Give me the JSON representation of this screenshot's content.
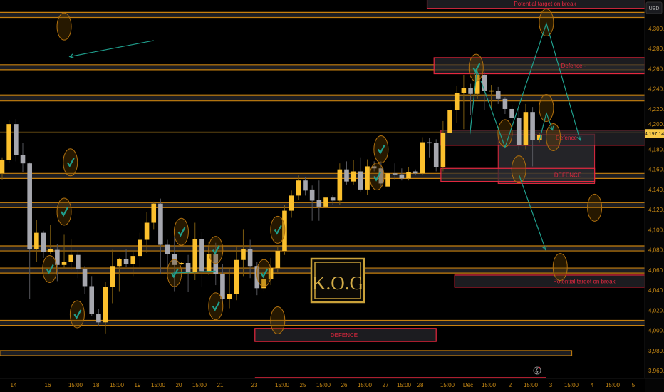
{
  "chart_data": {
    "type": "candlestick",
    "currency_label": "USD",
    "last_price": "4,197.14",
    "ylim": [
      3945,
      4335
    ],
    "yticks": [
      "4,300.00",
      "4,280.00",
      "4,260.00",
      "4,240.00",
      "4,220.00",
      "4,200.00",
      "4,180.00",
      "4,160.00",
      "4,140.00",
      "4,120.00",
      "4,100.00",
      "4,080.00",
      "4,060.00",
      "4,040.00",
      "4,020.00",
      "4,000.00",
      "3,980.00",
      "3,960.00"
    ],
    "xticks": [
      "14",
      "16",
      "15:00",
      "18",
      "15:00",
      "19",
      "15:00",
      "20",
      "15:00",
      "21",
      "23",
      "15:00",
      "25",
      "15:00",
      "26",
      "15:00",
      "27",
      "15:00",
      "28",
      "15:00",
      "Dec",
      "15:00",
      "2",
      "15:00",
      "3",
      "15:00",
      "4",
      "15:00",
      "5"
    ],
    "candles_ohlc": [
      [
        4156,
        4172,
        4150,
        4169
      ],
      [
        4169,
        4209,
        4167,
        4205
      ],
      [
        4205,
        4210,
        4168,
        4174
      ],
      [
        4174,
        4186,
        4157,
        4166
      ],
      [
        4166,
        4167,
        4031,
        4081
      ],
      [
        4081,
        4110,
        4068,
        4097
      ],
      [
        4097,
        4099,
        4072,
        4078
      ],
      [
        4078,
        4105,
        4076,
        4081
      ],
      [
        4080,
        4086,
        4049,
        4065
      ],
      [
        4065,
        4095,
        4062,
        4068
      ],
      [
        4068,
        4091,
        4060,
        4075
      ],
      [
        4075,
        4080,
        4052,
        4061
      ],
      [
        4061,
        4064,
        4036,
        4044
      ],
      [
        4044,
        4054,
        4014,
        4016
      ],
      [
        4016,
        4021,
        4004,
        4008
      ],
      [
        4008,
        4048,
        3997,
        4043
      ],
      [
        4043,
        4080,
        4027,
        4064
      ],
      [
        4064,
        4072,
        4039,
        4071
      ],
      [
        4071,
        4081,
        4063,
        4066
      ],
      [
        4066,
        4078,
        4054,
        4074
      ],
      [
        4074,
        4097,
        4063,
        4090
      ],
      [
        4090,
        4118,
        4077,
        4107
      ],
      [
        4107,
        4128,
        4100,
        4126
      ],
      [
        4126,
        4131,
        4056,
        4085
      ],
      [
        4085,
        4090,
        4055,
        4076
      ],
      [
        4076,
        4093,
        4039,
        4065
      ],
      [
        4066,
        4068,
        4065,
        4067
      ],
      [
        4067,
        4075,
        4038,
        4058
      ],
      [
        4058,
        4107,
        4050,
        4091
      ],
      [
        4091,
        4098,
        4043,
        4059
      ],
      [
        4059,
        4088,
        4055,
        4076
      ],
      [
        4076,
        4087,
        4045,
        4056
      ],
      [
        4056,
        4066,
        4027,
        4031
      ],
      [
        4031,
        4061,
        4022,
        4036
      ],
      [
        4036,
        4083,
        4030,
        4070
      ],
      [
        4070,
        4100,
        4054,
        4081
      ],
      [
        4081,
        4090,
        4052,
        4064
      ],
      [
        4064,
        4068,
        4035,
        4042
      ],
      [
        4042,
        4055,
        4039,
        4051
      ],
      [
        4051,
        4072,
        4045,
        4062
      ],
      [
        4062,
        4084,
        4058,
        4079
      ],
      [
        4079,
        4125,
        4075,
        4119
      ],
      [
        4119,
        4139,
        4112,
        4134
      ],
      [
        4134,
        4154,
        4130,
        4149
      ],
      [
        4149,
        4152,
        4134,
        4139
      ],
      [
        4140,
        4144,
        4109,
        4129
      ],
      [
        4130,
        4149,
        4109,
        4123
      ],
      [
        4123,
        4158,
        4117,
        4132
      ],
      [
        4132,
        4135,
        4125,
        4129
      ],
      [
        4129,
        4166,
        4125,
        4160
      ],
      [
        4160,
        4168,
        4145,
        4148
      ],
      [
        4148,
        4169,
        4145,
        4158
      ],
      [
        4158,
        4172,
        4138,
        4140
      ],
      [
        4140,
        4170,
        4135,
        4163
      ],
      [
        4163,
        4168,
        4158,
        4161
      ],
      [
        4161,
        4168,
        4143,
        4146
      ],
      [
        4143,
        4158,
        4142,
        4156
      ],
      [
        4156,
        4166,
        4150,
        4155
      ],
      [
        4155,
        4161,
        4149,
        4151
      ],
      [
        4151,
        4162,
        4149,
        4157
      ],
      [
        4158,
        4160,
        4154,
        4156
      ],
      [
        4156,
        4192,
        4154,
        4187
      ],
      [
        4187,
        4191,
        4172,
        4186
      ],
      [
        4186,
        4190,
        4158,
        4162
      ],
      [
        4162,
        4208,
        4158,
        4196
      ],
      [
        4196,
        4225,
        4195,
        4219
      ],
      [
        4219,
        4243,
        4206,
        4236
      ],
      [
        4236,
        4254,
        4200,
        4241
      ],
      [
        4241,
        4245,
        4214,
        4235
      ],
      [
        4235,
        4260,
        4230,
        4254
      ],
      [
        4254,
        4257,
        4219,
        4238
      ],
      [
        4238,
        4244,
        4220,
        4238.5
      ],
      [
        4238,
        4242,
        4225,
        4230
      ],
      [
        4230,
        4232,
        4215,
        4220
      ],
      [
        4220,
        4224,
        4205,
        4211
      ],
      [
        4211,
        4220,
        4180,
        4184
      ],
      [
        4184,
        4225,
        4180,
        4217
      ],
      [
        4217,
        4222,
        4163,
        4189
      ],
      [
        4189,
        4196,
        4187,
        4194
      ]
    ],
    "level_bands": [
      [
        4316,
        4311
      ],
      [
        4264,
        4259
      ],
      [
        4234,
        4228
      ],
      [
        4156,
        4151
      ],
      [
        4127,
        4122
      ],
      [
        4084,
        4079
      ],
      [
        4062,
        4057
      ],
      [
        4010,
        4005
      ]
    ],
    "short_band": {
      "price": [
        3980,
        3975
      ],
      "x_range": [
        0,
        83
      ]
    },
    "zones": [
      {
        "label": "Potential target on break",
        "price": [
          4335,
          4320
        ],
        "x_range": [
          62,
          94
        ]
      },
      {
        "label": "Defence -",
        "price": [
          4271,
          4255
        ],
        "x_range": [
          63,
          94
        ]
      },
      {
        "label": "Defence",
        "price": [
          4199,
          4184
        ],
        "x_range": [
          64,
          94
        ]
      },
      {
        "label": "DEFENCE",
        "price": [
          4161,
          4148
        ],
        "x_range": [
          64,
          86
        ]
      },
      {
        "label": "Potential target on break",
        "price": [
          4055,
          4043
        ],
        "x_range": [
          66,
          94
        ]
      },
      {
        "label": "DEFENCE",
        "price": [
          4002,
          3989
        ],
        "x_range": [
          37,
          63
        ]
      }
    ],
    "gray_box": {
      "price": [
        4195,
        4146
      ],
      "x_range": [
        72,
        86
      ]
    },
    "red_line": {
      "price": 3953,
      "x_range": [
        37,
        79
      ]
    },
    "markers": [
      {
        "x": 9,
        "price": 4302,
        "check": false
      },
      {
        "x": 9.9,
        "price": 4167,
        "check": true
      },
      {
        "x": 9,
        "price": 4118,
        "check": true
      },
      {
        "x": 6.9,
        "price": 4061,
        "check": true
      },
      {
        "x": 10.9,
        "price": 4016,
        "check": true
      },
      {
        "x": 26,
        "price": 4098,
        "check": true
      },
      {
        "x": 25,
        "price": 4057,
        "check": true
      },
      {
        "x": 31,
        "price": 4080,
        "check": true
      },
      {
        "x": 31,
        "price": 4024,
        "check": true
      },
      {
        "x": 40,
        "price": 4100,
        "check": true
      },
      {
        "x": 38,
        "price": 4057,
        "check": true
      },
      {
        "x": 40,
        "price": 4010,
        "check": false
      },
      {
        "x": 55,
        "price": 4180,
        "check": true
      },
      {
        "x": 54.4,
        "price": 4153,
        "check": true
      },
      {
        "x": 68.8,
        "price": 4261,
        "check": true
      },
      {
        "x": 73,
        "price": 4196,
        "check": false
      },
      {
        "x": 75,
        "price": 4160,
        "check": false
      },
      {
        "x": 79,
        "price": 4306,
        "check": false
      },
      {
        "x": 79,
        "price": 4221,
        "check": false
      },
      {
        "x": 80,
        "price": 4192,
        "check": false
      },
      {
        "x": 86,
        "price": 4122,
        "check": false
      },
      {
        "x": 81,
        "price": 4063,
        "check": false
      }
    ],
    "projection_lines": [
      {
        "points": [
          [
            22,
            4288
          ],
          [
            9.8,
            4272
          ]
        ],
        "arrow": true
      },
      {
        "points": [
          [
            67.9,
            4195
          ],
          [
            68.9,
            4258
          ]
        ],
        "arrow": true
      },
      {
        "points": [
          [
            69.5,
            4248
          ],
          [
            73,
            4182
          ],
          [
            79,
            4305
          ],
          [
            83.9,
            4189
          ]
        ],
        "arrow": true
      },
      {
        "points": [
          [
            78,
            4189
          ],
          [
            79,
            4216
          ],
          [
            79.9,
            4199
          ]
        ],
        "arrow": true
      },
      {
        "points": [
          [
            75,
            4155
          ],
          [
            78.9,
            4080
          ]
        ],
        "arrow": true
      },
      {
        "points": [
          [
            24.8,
            4057
          ],
          [
            31,
            4059
          ]
        ],
        "arrow": false
      }
    ],
    "colors": {
      "background": "#000000",
      "bull": "#fbc02d",
      "bear": "#a6a7ae",
      "level_line": "#c7800e",
      "band_fill": "#1d1e23",
      "zone_border": "#e5283f",
      "projection": "#1f9e8c",
      "marker_stroke": "#b0700e",
      "price_text": "#c98a14"
    }
  },
  "watermark": {
    "text": "K.O.G"
  }
}
